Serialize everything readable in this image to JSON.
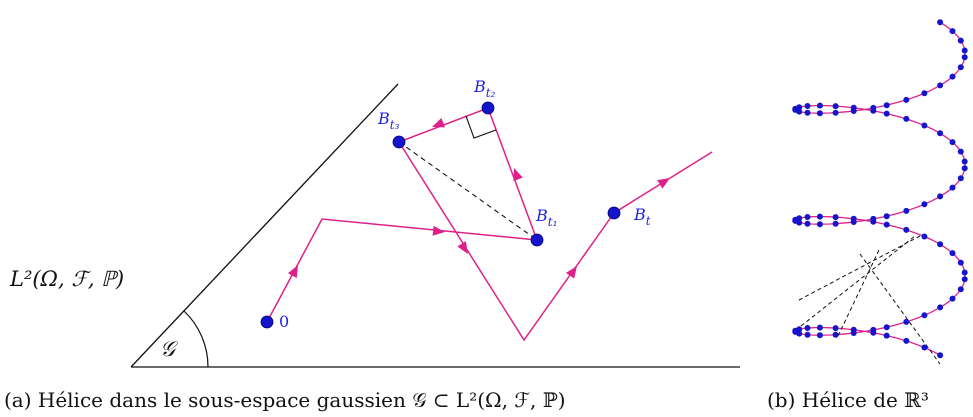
{
  "panel_a": {
    "space_label": "L²(Ω, ℱ, ℙ)",
    "cone_label": "𝒢",
    "points": [
      {
        "id": "origin",
        "label": "0"
      },
      {
        "id": "bt1",
        "label": "B",
        "sub": "t₁"
      },
      {
        "id": "bt2",
        "label": "B",
        "sub": "t₂"
      },
      {
        "id": "bt3",
        "label": "B",
        "sub": "t₃"
      },
      {
        "id": "bt",
        "label": "B",
        "sub": "t"
      }
    ],
    "caption": "(a) Hélice dans le sous-espace gaussien 𝒢 ⊂ L²(Ω, ℱ, ℙ)"
  },
  "panel_b": {
    "caption": "(b) Hélice de ℝ³"
  },
  "colors": {
    "path": "#e0208a",
    "point": "#1414cc",
    "label": "#2222dd",
    "ink": "#111111"
  }
}
